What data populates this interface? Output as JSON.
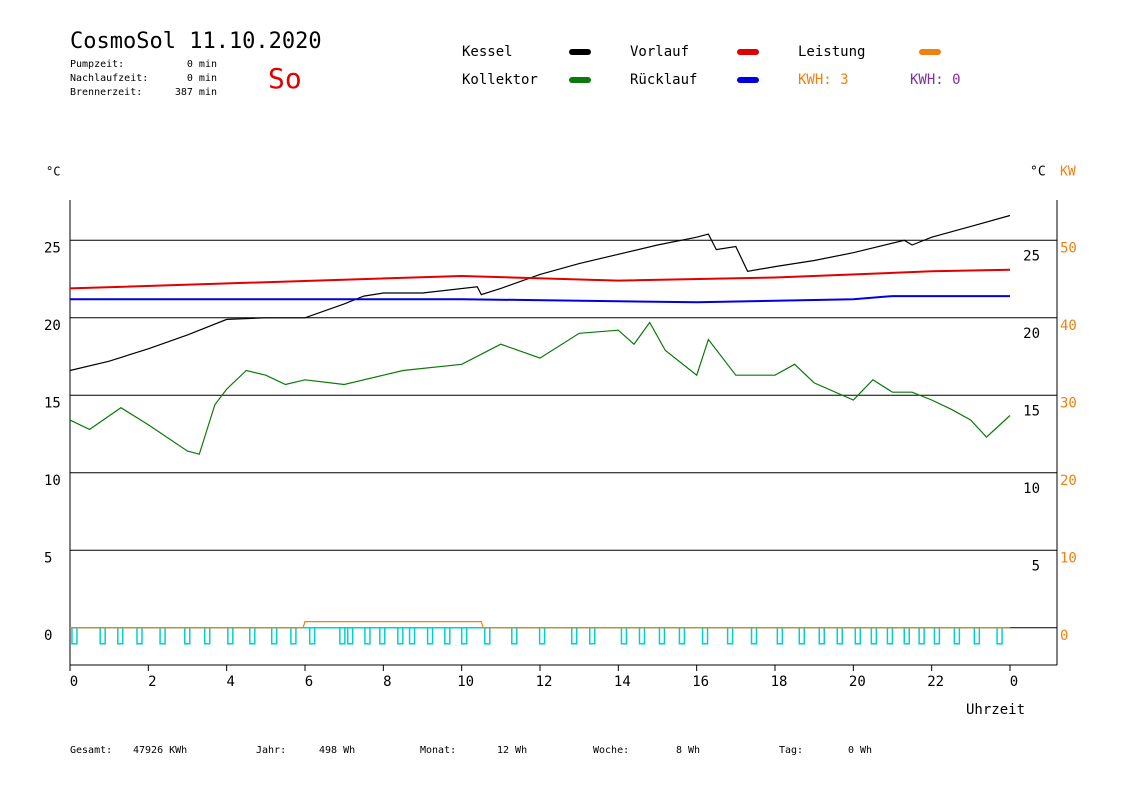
{
  "chart_data": {
    "type": "line",
    "title": "CosmoSol 11.10.2020",
    "day": "So",
    "stats": [
      {
        "label": "Pumpzeit:",
        "value": "0 min"
      },
      {
        "label": "Nachlaufzeit:",
        "value": "0 min"
      },
      {
        "label": "Brennerzeit:",
        "value": "387 min"
      }
    ],
    "y_label": "°C",
    "y2_labels": [
      "°C",
      "KW"
    ],
    "x_label": "Uhrzeit",
    "xlim": [
      0,
      25.2
    ],
    "xticks": [
      0,
      2,
      4,
      6,
      8,
      10,
      12,
      14,
      16,
      18,
      20,
      22,
      {
        "value": 24,
        "label": "0"
      }
    ],
    "ylim": [
      -2.4,
      27.6
    ],
    "yticks": [
      0,
      5,
      10,
      15,
      20,
      25
    ],
    "y2lim": [
      -4.8,
      55.2
    ],
    "y2ticks": [
      0,
      10,
      20,
      30,
      40,
      50
    ],
    "grid": true,
    "series": [
      {
        "name": "Kessel",
        "color": "#000000",
        "x": [
          0,
          1,
          2,
          3,
          4,
          5,
          6,
          7,
          7.5,
          8,
          9,
          10.4,
          10.5,
          11,
          12,
          13,
          14,
          15,
          16,
          16.3,
          16.5,
          17,
          17.3,
          18,
          19,
          20,
          21.3,
          21.5,
          22,
          23,
          24
        ],
        "values": [
          16.6,
          17.2,
          18.0,
          18.9,
          19.9,
          20.0,
          20.0,
          20.9,
          21.4,
          21.6,
          21.6,
          22.0,
          21.5,
          21.9,
          22.8,
          23.5,
          24.1,
          24.7,
          25.2,
          25.4,
          24.4,
          24.6,
          23.0,
          23.3,
          23.7,
          24.2,
          25.0,
          24.7,
          25.2,
          25.9,
          26.6
        ]
      },
      {
        "name": "Kollektor",
        "color": "#0a7a0a",
        "x": [
          0,
          0.5,
          1.3,
          2,
          3,
          3.3,
          3.7,
          4,
          4.5,
          5,
          5.5,
          6,
          7,
          8,
          8.5,
          10,
          11,
          12,
          13,
          14,
          14.4,
          14.8,
          15.2,
          16,
          16.3,
          17,
          18,
          18.5,
          19,
          20,
          20.5,
          21,
          21.5,
          22,
          22.5,
          23,
          23.4,
          24
        ],
        "values": [
          13.4,
          12.8,
          14.2,
          13.1,
          11.4,
          11.2,
          14.4,
          15.4,
          16.6,
          16.3,
          15.7,
          16.0,
          15.7,
          16.3,
          16.6,
          17.0,
          18.3,
          17.4,
          19.0,
          19.2,
          18.3,
          19.7,
          17.9,
          16.3,
          18.6,
          16.3,
          16.3,
          17.0,
          15.8,
          14.7,
          16.0,
          15.2,
          15.2,
          14.7,
          14.1,
          13.4,
          12.3,
          13.7
        ]
      },
      {
        "name": "Vorlauf",
        "color": "#e00000",
        "x": [
          0,
          10,
          14,
          18,
          22,
          24
        ],
        "values": [
          21.9,
          22.7,
          22.4,
          22.6,
          23.0,
          23.1
        ]
      },
      {
        "name": "Rücklauf",
        "color": "#0000e0",
        "x": [
          0,
          10,
          16,
          20,
          21,
          24
        ],
        "values": [
          21.2,
          21.2,
          21.0,
          21.2,
          21.4,
          21.4
        ]
      },
      {
        "name": "Leistung",
        "color": "#f08010",
        "axis": "y2",
        "x": [
          0,
          5.95,
          6,
          10.5,
          10.55,
          24
        ],
        "values": [
          0,
          0,
          0.8,
          0.8,
          0,
          0
        ]
      }
    ],
    "kwh_labels": [
      {
        "text": "KWH: 3",
        "color": "#f08010"
      },
      {
        "text": "KWH: 0",
        "color": "#8030a0"
      }
    ],
    "pulse_color": "#00d0d0",
    "pulse_x": [
      0.05,
      0.77,
      1.22,
      1.71,
      2.3,
      2.93,
      3.44,
      4.03,
      4.59,
      5.15,
      5.64,
      6.12,
      6.89,
      7.09,
      7.53,
      7.91,
      8.37,
      8.67,
      9.13,
      9.57,
      10.0,
      10.59,
      11.28,
      11.99,
      12.81,
      13.27,
      14.08,
      14.54,
      15.05,
      15.56,
      16.15,
      16.79,
      17.4,
      18.06,
      18.62,
      19.13,
      19.59,
      20.05,
      20.46,
      20.87,
      21.3,
      21.68,
      22.07,
      22.58,
      23.09,
      23.67
    ],
    "totals": [
      {
        "label": "Gesamt:",
        "value": "47926 KWh"
      },
      {
        "label": "Jahr:",
        "value": "498 Wh"
      },
      {
        "label": "Monat:",
        "value": "12 Wh"
      },
      {
        "label": "Woche:",
        "value": "8 Wh"
      },
      {
        "label": "Tag:",
        "value": "0 Wh"
      }
    ]
  }
}
